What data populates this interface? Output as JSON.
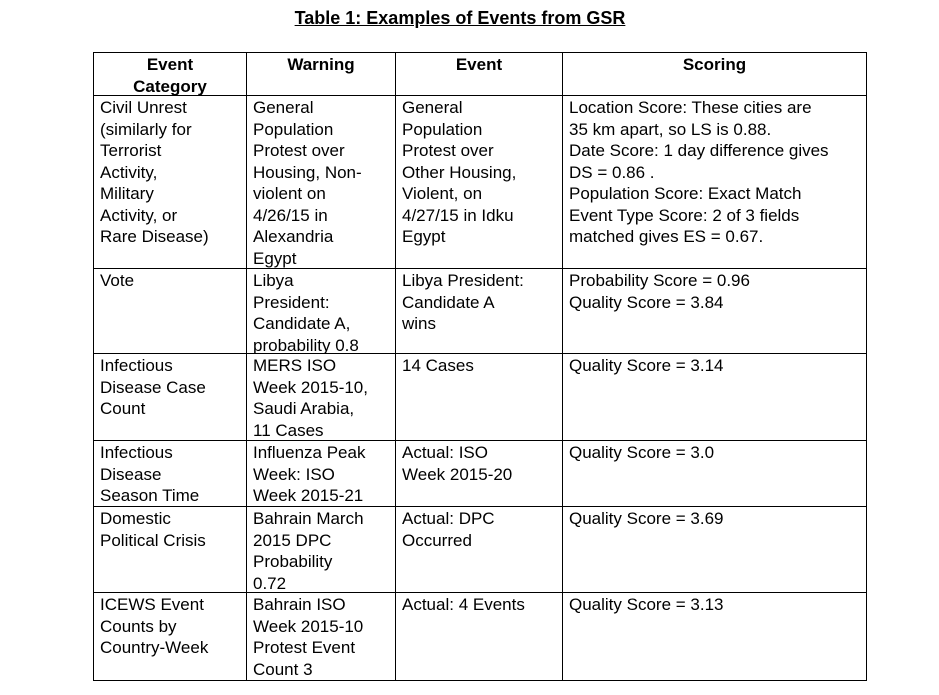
{
  "title": "Table 1: Examples of Events from GSR",
  "table": {
    "header": [
      [
        "Event",
        "Category"
      ],
      [
        "Warning"
      ],
      [
        "Event"
      ],
      [
        "Scoring"
      ]
    ],
    "rows": [
      [
        [
          "Civil Unrest",
          "(similarly for",
          "Terrorist",
          "Activity,",
          "Military",
          "Activity, or",
          "Rare Disease)"
        ],
        [
          "General",
          "Population",
          "Protest over",
          "Housing, Non-",
          "violent on",
          "4/26/15 in",
          "Alexandria",
          "Egypt"
        ],
        [
          "General",
          "Population",
          "Protest over",
          "Other Housing,",
          "Violent, on",
          "4/27/15 in Idku",
          "Egypt"
        ],
        [
          "Location Score:  These cities are",
          "35 km apart, so LS is 0.88.",
          "Date Score:  1 day difference gives",
          "DS = 0.86 .",
          "Population Score: Exact Match",
          "Event Type Score: 2 of 3 fields",
          "matched gives ES = 0.67."
        ]
      ],
      [
        [
          "Vote"
        ],
        [
          "Libya",
          "President:",
          "Candidate A,",
          "probability 0.8"
        ],
        [
          "Libya President:",
          "Candidate A",
          "wins"
        ],
        [
          "Probability Score = 0.96",
          "Quality Score = 3.84"
        ]
      ],
      [
        [
          "Infectious",
          "Disease Case",
          "Count"
        ],
        [
          "MERS ISO",
          "Week 2015-10,",
          "Saudi Arabia,",
          "11 Cases"
        ],
        [
          "14 Cases"
        ],
        [
          "Quality Score = 3.14"
        ]
      ],
      [
        [
          "Infectious",
          "Disease",
          "Season Time"
        ],
        [
          "Influenza Peak",
          "Week: ISO",
          "Week 2015-21"
        ],
        [
          "Actual: ISO",
          "Week 2015-20"
        ],
        [
          "Quality Score = 3.0"
        ]
      ],
      [
        [
          "Domestic",
          "Political Crisis"
        ],
        [
          "Bahrain March",
          "2015 DPC",
          "Probability",
          "0.72"
        ],
        [
          "Actual:  DPC",
          "Occurred"
        ],
        [
          "Quality Score = 3.69"
        ]
      ],
      [
        [
          "ICEWS Event",
          "Counts by",
          "Country-Week"
        ],
        [
          "Bahrain ISO",
          "Week 2015-10",
          "Protest Event",
          "Count 3"
        ],
        [
          "Actual: 4 Events"
        ],
        [
          "Quality Score = 3.13"
        ]
      ]
    ]
  }
}
